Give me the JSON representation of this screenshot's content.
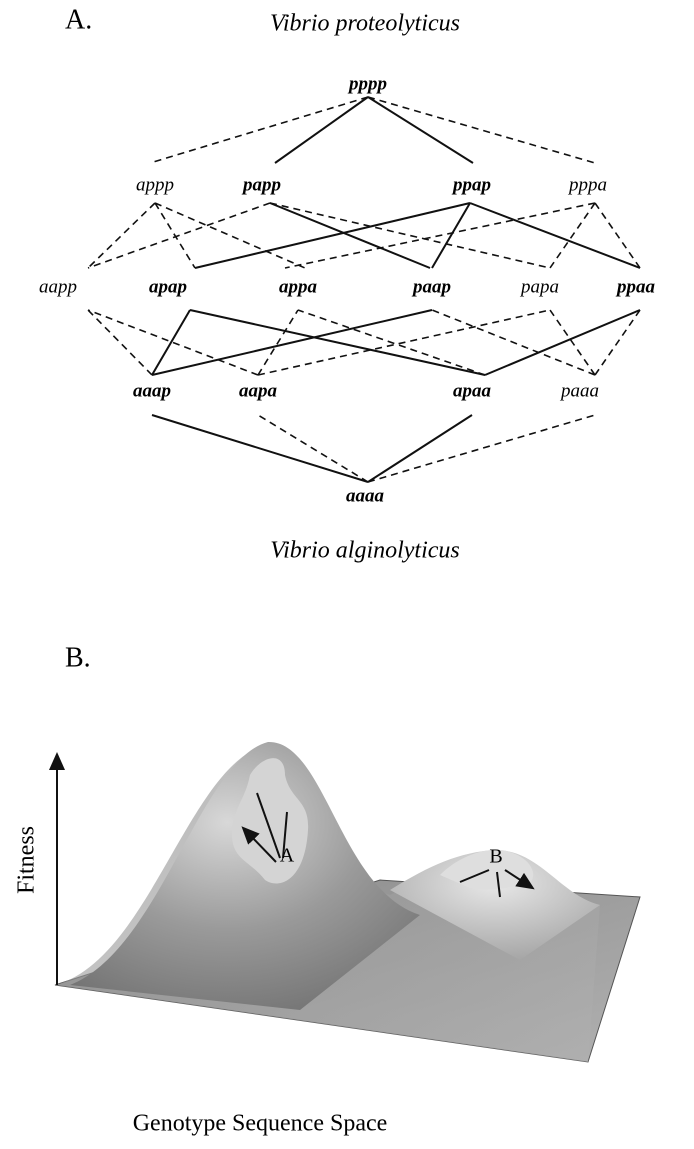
{
  "panel_a": {
    "label": "A.",
    "top_title": "Vibrio proteolyticus",
    "bottom_title": "Vibrio alginolyticus",
    "nodes": [
      {
        "label": "pppp",
        "bold": true
      },
      {
        "label": "appp",
        "bold": false
      },
      {
        "label": "papp",
        "bold": true
      },
      {
        "label": "ppap",
        "bold": true
      },
      {
        "label": "pppa",
        "bold": false
      },
      {
        "label": "aapp",
        "bold": false
      },
      {
        "label": "apap",
        "bold": true
      },
      {
        "label": "appa",
        "bold": true
      },
      {
        "label": "paap",
        "bold": true
      },
      {
        "label": "papa",
        "bold": false
      },
      {
        "label": "ppaa",
        "bold": true
      },
      {
        "label": "aaap",
        "bold": true
      },
      {
        "label": "aapa",
        "bold": true
      },
      {
        "label": "apaa",
        "bold": true
      },
      {
        "label": "paaa",
        "bold": false
      },
      {
        "label": "aaaa",
        "bold": true
      }
    ]
  },
  "panel_b": {
    "label": "B.",
    "y_axis_label": "Fitness",
    "x_axis_label": "Genotype Sequence Space",
    "peaks": [
      {
        "label": "A"
      },
      {
        "label": "B"
      }
    ]
  }
}
